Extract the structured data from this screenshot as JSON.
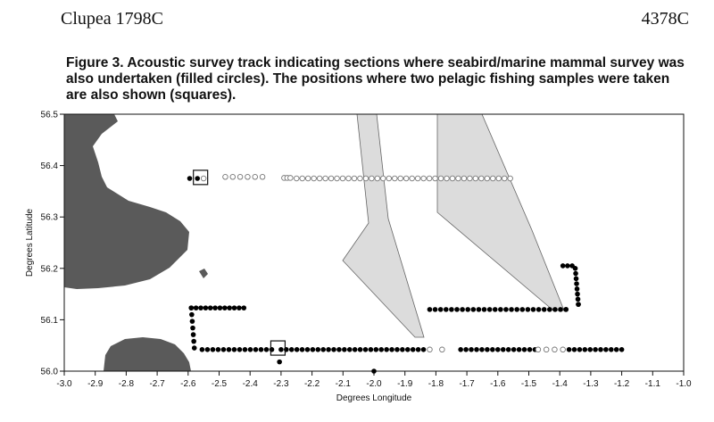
{
  "header": {
    "left": "Clupea 1798C",
    "right": "4378C"
  },
  "caption": "Figure 3. Acoustic survey track indicating sections where seabird/marine mammal survey was also undertaken (filled circles). The positions where two pelagic fishing samples were taken are also shown (squares).",
  "chart_data": {
    "type": "scatter",
    "title": "",
    "xlabel": "Degrees Longitude",
    "ylabel": "Degrees Latitude",
    "xlim": [
      -3.0,
      -1.0
    ],
    "ylim": [
      56.0,
      56.5
    ],
    "x_ticks": [
      "-3.0",
      "-2.9",
      "-2.8",
      "-2.7",
      "-2.6",
      "-2.5",
      "-2.4",
      "-2.3",
      "-2.2",
      "-2.1",
      "-2.0",
      "-1.9",
      "-1.8",
      "-1.7",
      "-1.6",
      "-1.5",
      "-1.4",
      "-1.3",
      "-1.2",
      "-1.1",
      "-1.0"
    ],
    "y_ticks": [
      "56.0",
      "56.1",
      "56.2",
      "56.3",
      "56.4",
      "56.5"
    ],
    "grid": false,
    "colors": {
      "filled": "#000000",
      "open": "#777777",
      "land": "#555555",
      "shaded_area": "#dcdcdc"
    },
    "series": [
      {
        "marker": "filled-circle",
        "segments": [
          {
            "from": [
              -2.595,
              56.375
            ],
            "to": [
              -2.57,
              56.375
            ],
            "n": 2
          },
          {
            "from": [
              -2.59,
              56.123
            ],
            "to": [
              -2.42,
              56.123
            ],
            "n": 12
          },
          {
            "from": [
              -2.59,
              56.123
            ],
            "to": [
              -2.58,
              56.045
            ],
            "n": 7
          },
          {
            "from": [
              -2.555,
              56.042
            ],
            "to": [
              -2.33,
              56.042
            ],
            "n": 14
          },
          {
            "from": [
              -2.3,
              56.042
            ],
            "to": [
              -1.84,
              56.042
            ],
            "n": 28
          },
          {
            "from": [
              -1.72,
              56.042
            ],
            "to": [
              -1.48,
              56.042
            ],
            "n": 15
          },
          {
            "from": [
              -1.37,
              56.042
            ],
            "to": [
              -1.2,
              56.042
            ],
            "n": 11
          },
          {
            "from": [
              -1.82,
              56.12
            ],
            "to": [
              -1.38,
              56.12
            ],
            "n": 26
          },
          {
            "from": [
              -1.39,
              56.205
            ],
            "to": [
              -1.36,
              56.205
            ],
            "n": 3
          },
          {
            "from": [
              -1.35,
              56.2
            ],
            "to": [
              -1.34,
              56.13
            ],
            "n": 8
          },
          {
            "from": [
              -1.38,
              56.12
            ],
            "to": [
              -1.34,
              56.13
            ],
            "n": 2
          }
        ],
        "extra_points": [
          [
            -2.305,
            56.018
          ],
          [
            -2.0,
            56.0
          ]
        ]
      },
      {
        "marker": "open-circle",
        "segments": [
          {
            "from": [
              -2.55,
              56.375
            ],
            "to": [
              -2.55,
              56.375
            ],
            "n": 1
          },
          {
            "from": [
              -2.48,
              56.378
            ],
            "to": [
              -2.36,
              56.378
            ],
            "n": 6
          },
          {
            "from": [
              -2.29,
              56.376
            ],
            "to": [
              -2.27,
              56.376
            ],
            "n": 3
          },
          {
            "from": [
              -2.25,
              56.375
            ],
            "to": [
              -1.56,
              56.375
            ],
            "n": 38
          },
          {
            "from": [
              -1.82,
              56.042
            ],
            "to": [
              -1.78,
              56.042
            ],
            "n": 2
          },
          {
            "from": [
              -1.47,
              56.042
            ],
            "to": [
              -1.39,
              56.042
            ],
            "n": 4
          }
        ],
        "extra_points": []
      },
      {
        "marker": "square",
        "segments": [],
        "extra_points": [
          [
            -2.56,
            56.377
          ],
          [
            -2.31,
            56.045
          ]
        ]
      }
    ]
  }
}
